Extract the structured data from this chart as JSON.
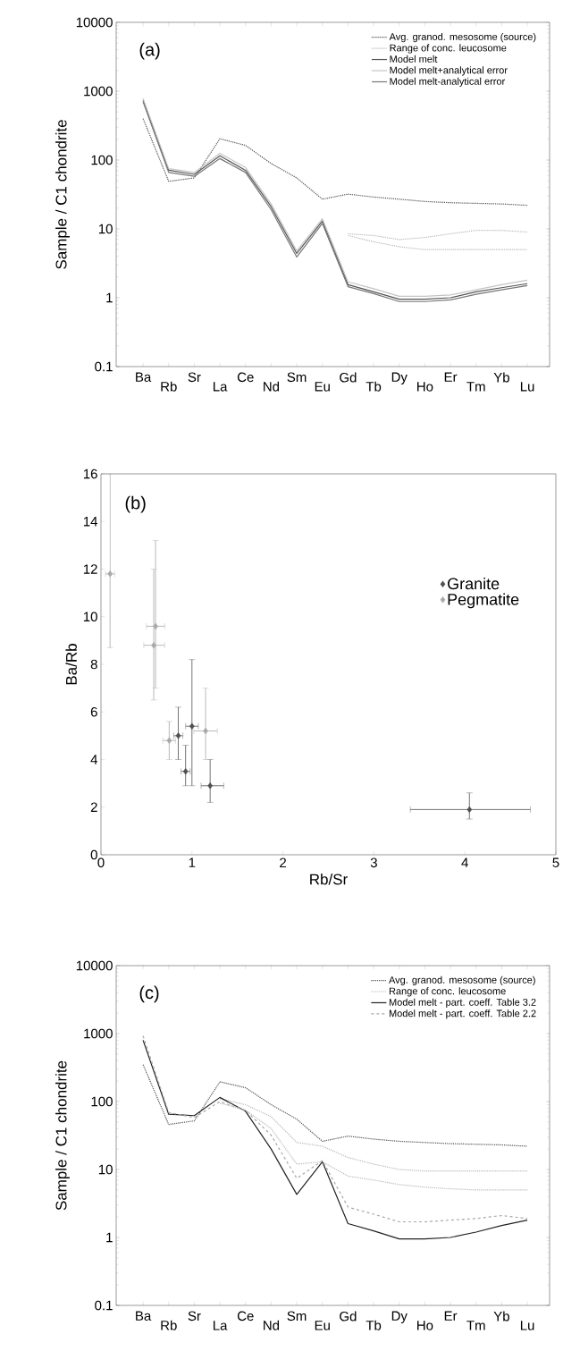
{
  "chart_data": [
    {
      "type": "line",
      "ylabel": "Sample / C1 chondrite",
      "annotations": [
        "(a)"
      ],
      "categories": [
        "Ba",
        "Rb",
        "Sr",
        "La",
        "Ce",
        "Nd",
        "Sm",
        "Eu",
        "Gd",
        "Tb",
        "Dy",
        "Ho",
        "Er",
        "Tm",
        "Yb",
        "Lu"
      ],
      "log": true,
      "ylim": [
        0.1,
        10000
      ],
      "yticks": [
        0.1,
        1,
        10,
        100,
        1000,
        10000
      ],
      "legend": "top right",
      "series": [
        {
          "name": "Avg. granod. mesosome (source)",
          "color": "#555555",
          "line_style": "dotted",
          "values": [
            400,
            49,
            55,
            204,
            163,
            89,
            55,
            27,
            32,
            29,
            27,
            25,
            24,
            23.5,
            23,
            22
          ]
        },
        {
          "name": "Range of conc. leucosome",
          "color": "#bbbbbb",
          "line_style": "dotted",
          "values": [
            null,
            null,
            null,
            null,
            null,
            null,
            null,
            null,
            8.5,
            8,
            7,
            7.5,
            8.5,
            9.5,
            9.5,
            9
          ]
        },
        {
          "name": "Model melt",
          "color": "#555555",
          "line_style": "solid",
          "values": [
            740,
            71,
            62,
            115,
            71,
            21,
            4.4,
            13,
            1.55,
            1.22,
            0.95,
            0.95,
            1.0,
            1.22,
            1.4,
            1.6
          ]
        },
        {
          "name": "Model melt+analytical error",
          "color": "#c4c4c4",
          "line_style": "solid",
          "values": [
            780,
            75,
            66,
            125,
            78,
            23,
            4.8,
            14,
            1.7,
            1.35,
            1.05,
            1.05,
            1.1,
            1.3,
            1.55,
            1.8
          ]
        },
        {
          "name": "Model melt-analytical error",
          "color": "#777777",
          "line_style": "solid",
          "values": [
            700,
            66,
            58,
            105,
            66,
            19,
            3.9,
            12,
            1.45,
            1.15,
            0.88,
            0.88,
            0.93,
            1.12,
            1.3,
            1.5
          ]
        },
        {
          "color": "#bbbbbb",
          "line_style": "dotted",
          "values": [
            null,
            null,
            null,
            null,
            null,
            null,
            null,
            null,
            8,
            6.5,
            5.5,
            5,
            5,
            5,
            5,
            5
          ]
        }
      ]
    },
    {
      "type": "scatter",
      "xlabel": "Rb/Sr",
      "ylabel": "Ba/Rb",
      "annotations": [
        "(b)"
      ],
      "xlim": [
        0,
        5
      ],
      "xticks": [
        0,
        1,
        2,
        3,
        4,
        5
      ],
      "ylim": [
        0,
        16
      ],
      "yticks": [
        0,
        2,
        4,
        6,
        8,
        10,
        12,
        14,
        16
      ],
      "legend": "right",
      "marker": "diamond",
      "series": [
        {
          "name": "Granite",
          "color": "#505050",
          "x": [
            0.85,
            0.93,
            1.0,
            1.2,
            4.05
          ],
          "values": [
            5.0,
            3.5,
            5.4,
            2.9,
            1.9
          ],
          "errors": [
            [
              4.0,
              6.2
            ],
            [
              2.9,
              4.6
            ],
            [
              2.9,
              8.2
            ],
            [
              2.2,
              4.0
            ],
            [
              1.5,
              2.6
            ]
          ],
          "xerrors": [
            [
              0.8,
              0.9
            ],
            [
              0.88,
              0.98
            ],
            [
              0.93,
              1.07
            ],
            [
              1.1,
              1.35
            ],
            [
              3.4,
              4.72
            ]
          ]
        },
        {
          "name": "Pegmatite",
          "color": "#a8a8a8",
          "x": [
            0.1,
            0.6,
            0.58,
            1.15,
            0.75
          ],
          "values": [
            11.8,
            9.6,
            8.8,
            5.2,
            4.8
          ],
          "errors": [
            [
              8.7,
              16
            ],
            [
              7.0,
              13.2
            ],
            [
              6.5,
              12.0
            ],
            [
              4.0,
              7.0
            ],
            [
              4.0,
              5.6
            ]
          ],
          "xerrors": [
            [
              0.05,
              0.15
            ],
            [
              0.5,
              0.7
            ],
            [
              0.47,
              0.7
            ],
            [
              1.02,
              1.28
            ],
            [
              0.68,
              0.82
            ]
          ]
        }
      ]
    },
    {
      "type": "line",
      "ylabel": "Sample / C1 chondrite",
      "annotations": [
        "(c)"
      ],
      "categories": [
        "Ba",
        "Rb",
        "Sr",
        "La",
        "Ce",
        "Nd",
        "Sm",
        "Eu",
        "Gd",
        "Tb",
        "Dy",
        "Ho",
        "Er",
        "Tm",
        "Yb",
        "Lu"
      ],
      "log": true,
      "ylim": [
        0.1,
        10000
      ],
      "yticks": [
        0.1,
        1,
        10,
        100,
        1000,
        10000
      ],
      "legend": "top right",
      "series": [
        {
          "name": "Avg. granod. mesosome (source)",
          "color": "#555555",
          "line_style": "dotted",
          "values": [
            350,
            46,
            52,
            195,
            160,
            90,
            55,
            26,
            31,
            28,
            26,
            25,
            24,
            23.5,
            23,
            22
          ]
        },
        {
          "name": "Range of conc. leucosome",
          "color": "#bbbbbb",
          "line_style": "dotted",
          "values": [
            null,
            null,
            null,
            110,
            90,
            60,
            25,
            22,
            15,
            12,
            10,
            9.5,
            9.5,
            9.5,
            9.5,
            9.5
          ]
        },
        {
          "name": "Model melt - part. coeff. Table 3.2",
          "color": "#222222",
          "line_style": "solid",
          "values": [
            800,
            65,
            62,
            115,
            72,
            20,
            4.3,
            13,
            1.6,
            1.25,
            0.95,
            0.95,
            1.0,
            1.2,
            1.5,
            1.8
          ]
        },
        {
          "name": "Model melt - part. coeff. Table 2.2",
          "color": "#a8a8a8",
          "line_style": "dashed",
          "values": [
            930,
            69,
            58,
            100,
            74,
            32,
            7.4,
            13.5,
            2.8,
            2.2,
            1.7,
            1.7,
            1.8,
            1.9,
            2.1,
            1.9
          ]
        },
        {
          "color": "#bbbbbb",
          "line_style": "dotted",
          "values": [
            null,
            null,
            null,
            95,
            75,
            40,
            12,
            13,
            8,
            7,
            6,
            5.5,
            5.2,
            5,
            5,
            5
          ]
        }
      ]
    }
  ]
}
